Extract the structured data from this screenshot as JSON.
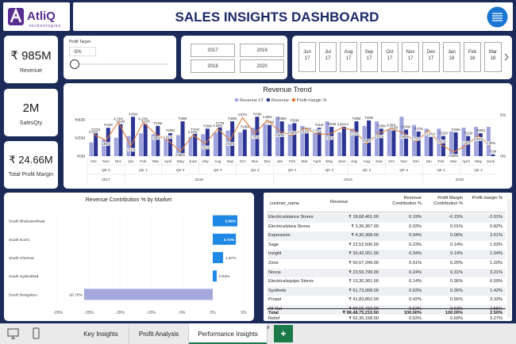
{
  "header": {
    "logo": "AtliQ",
    "logo_sub": "technologies",
    "title": "SALES INSIGHTS DASHBOARD"
  },
  "kpis": [
    {
      "value": "₹ 985M",
      "label": "Revenue"
    },
    {
      "value": "2M",
      "label": "SalesQty"
    },
    {
      "value": "₹ 24.66M",
      "label": "Total Profit Margin"
    }
  ],
  "profit_target": {
    "label": "Profit Target",
    "value": "-5%"
  },
  "year_slicer": [
    "2017",
    "2019",
    "2018",
    "2020"
  ],
  "month_slicer": [
    {
      "month": "Jun",
      "year": "17"
    },
    {
      "month": "Jul",
      "year": "17"
    },
    {
      "month": "Aug",
      "year": "17"
    },
    {
      "month": "Sep",
      "year": "17"
    },
    {
      "month": "Oct",
      "year": "17"
    },
    {
      "month": "Nov",
      "year": "17"
    },
    {
      "month": "Dec",
      "year": "17"
    },
    {
      "month": "Jan",
      "year": "18"
    },
    {
      "month": "Feb",
      "year": "18"
    },
    {
      "month": "Mar",
      "year": "18"
    }
  ],
  "chart_data": [
    {
      "type": "combo",
      "title": "Revenue Trend",
      "categories": [
        "Oct",
        "Nov",
        "Dec",
        "Jan",
        "Feb",
        "Mar",
        "April",
        "May",
        "June",
        "July",
        "Aug",
        "Sep",
        "Oct",
        "Nov",
        "Dec",
        "Jan",
        "Feb",
        "Mar",
        "April",
        "May",
        "June",
        "July",
        "Aug",
        "Sep",
        "Oct",
        "Nov",
        "Dec",
        "Jan",
        "Feb",
        "Mar",
        "April",
        "May",
        "June"
      ],
      "quarters": [
        "Qtr 4",
        "Qtr 1",
        "Qtr 2",
        "Qtr 3",
        "Qtr 4",
        "Qtr 1",
        "Qtr 2",
        "Qtr 3",
        "Qtr 4",
        "Qtr 1",
        "Qtr 2"
      ],
      "years": [
        "2017",
        "2018",
        "2019",
        "2020"
      ],
      "ylim": [
        0,
        45
      ],
      "yticks": [
        {
          "value": 0,
          "label": "₹0M"
        },
        {
          "value": 20,
          "label": "₹20M"
        },
        {
          "value": 40,
          "label": "₹40M"
        }
      ],
      "y2lim": [
        0,
        5
      ],
      "y2ticks": [
        {
          "value": 0,
          "label": "0%"
        },
        {
          "value": 5,
          "label": "5%"
        }
      ],
      "series": [
        {
          "name": "Revenue LY",
          "color": "#9fa3de",
          "type": "bar",
          "values": [
            15,
            18,
            20,
            22,
            25,
            24,
            20,
            23,
            21,
            24,
            26,
            28,
            26,
            31,
            35,
            43,
            35,
            33,
            25,
            38,
            26,
            30,
            33,
            38,
            29,
            43,
            34,
            30,
            30,
            27,
            31,
            32,
            32
          ]
        },
        {
          "name": "Revenue",
          "color": "#2d3594",
          "type": "bar",
          "values": [
            26,
            31,
            35,
            43,
            35,
            33,
            25,
            38,
            26,
            30,
            33,
            38,
            29,
            43,
            34,
            38,
            36,
            27,
            31,
            32,
            32,
            38,
            39,
            30,
            28,
            29,
            27,
            21,
            22,
            26,
            22,
            25,
            2
          ],
          "value_labels": [
            "₹26M",
            "₹31M",
            "₹35M",
            "₹43M",
            "₹35M",
            "₹33M",
            "₹25M",
            "₹38M",
            "₹26M",
            "₹30M",
            "₹33M",
            "₹38M",
            "₹29M",
            "₹43M",
            "₹34M",
            "₹38M",
            "₹36M",
            "₹27M",
            "₹31M",
            "₹32M",
            "₹32M",
            "₹38M",
            "₹39M",
            "₹30M",
            "₹28M",
            "₹29M",
            "₹27M",
            "₹21M",
            "₹22M",
            "₹26M",
            "₹22M",
            "₹25M",
            "₹2M"
          ]
        },
        {
          "name": "Profit margin %",
          "color": "#e07b39",
          "type": "line",
          "axis": "y2",
          "values": [
            2.62,
            1.92,
            4.13,
            1.21,
            4.13,
            2.66,
            1.91,
            0.56,
            2.57,
            1.51,
            3.33,
            1.94,
            4.67,
            2.75,
            4.38,
            3.0,
            2.46,
            3.42,
            2.7,
            2.64,
            3.45,
            3.13,
            1.48,
            2.82,
            3.35,
            2.8,
            1.75,
            3.13,
            1.41,
            0.49,
            1.26,
            2.51,
            1.2
          ],
          "value_labels": [
            "2.62%",
            "1.92%",
            "4.13%",
            "1.21%",
            "4.13%",
            "2.66%",
            "1.91%",
            "0.56%",
            "2.57%",
            "1.51%",
            "3.33%",
            "1.94%",
            "4.67%",
            "2.75%",
            "4.38%",
            "3.00%",
            "2.46%",
            "3.42%",
            "2.70%",
            "2.64%",
            "3.45%",
            "3.13%",
            "1.48%",
            "2.82%",
            "3.35%",
            "2.80%",
            "1.75%",
            "3.13%",
            "1.41%",
            "0.49%",
            "1.26%",
            "2.51%",
            "1.20%"
          ]
        }
      ],
      "legend": "top"
    },
    {
      "type": "hbar",
      "title": "Revenue Contribution % by Market",
      "categories": [
        "South Bhubaneshwar",
        "South Kochi",
        "South Chennai",
        "South Hyderabad",
        "South Bengaluru"
      ],
      "values": [
        3.98,
        3.74,
        1.67,
        0.63,
        -20.78
      ],
      "value_labels": [
        "3.98%",
        "3.74%",
        "1.67%",
        "0.63%",
        "-20.78%"
      ],
      "positive_color": "#1e88e5",
      "negative_color": "#a4a8dc",
      "xlim": [
        -25,
        5
      ],
      "xticks": [
        {
          "value": -25,
          "label": "-25%"
        },
        {
          "value": -20,
          "label": "-20%"
        },
        {
          "value": -15,
          "label": "-15%"
        },
        {
          "value": -10,
          "label": "-10%"
        },
        {
          "value": -5,
          "label": "-5%"
        },
        {
          "value": 0,
          "label": "0%"
        },
        {
          "value": 5,
          "label": "5%"
        }
      ]
    }
  ],
  "table": {
    "columns": [
      "custmer_name",
      "Revenue",
      "Revenue Contribution %",
      "Profit Margin Contribution %",
      "Profit margin %"
    ],
    "rows": [
      [
        "Electricalslance Stores",
        "₹ 18,68,461.00",
        "0.19%",
        "-0.15%",
        "-2.01%"
      ],
      [
        "Electricalsbea Stores",
        "₹ 3,36,367.00",
        "0.03%",
        "0.01%",
        "0.82%"
      ],
      [
        "Expression",
        "₹ 4,30,368.00",
        "0.04%",
        "0.06%",
        "3.51%"
      ],
      [
        "Sage",
        "₹ 22,52,506.00",
        "0.23%",
        "0.14%",
        "1.53%"
      ],
      [
        "Insight",
        "₹ 33,42,051.00",
        "0.34%",
        "0.14%",
        "1.04%"
      ],
      [
        "Zone",
        "₹ 50,67,349.00",
        "0.51%",
        "0.25%",
        "1.20%"
      ],
      [
        "Novus",
        "₹ 23,59,799.00",
        "0.24%",
        "0.31%",
        "3.21%"
      ],
      [
        "Electricalsquipo Stores",
        "₹ 13,30,361.00",
        "0.14%",
        "0.36%",
        "6.59%"
      ],
      [
        "Synthetic",
        "₹ 61,73,068.00",
        "0.63%",
        "0.36%",
        "1.42%"
      ],
      [
        "Propel",
        "₹ 41,83,862.00",
        "0.42%",
        "0.56%",
        "3.33%"
      ],
      [
        "All-Out",
        "₹ 60,66,432.00",
        "0.62%",
        "0.63%",
        "2.55%"
      ],
      [
        "Relief",
        "₹ 52,30,158.00",
        "0.53%",
        "0.69%",
        "3.27%"
      ]
    ],
    "total": [
      "Total",
      "₹ 98,48,75,210.50",
      "100.00%",
      "100.00%",
      "2.50%"
    ]
  },
  "tabs": {
    "items": [
      "Key Insights",
      "Profit Analysis",
      "Performance Insights"
    ],
    "close": "x",
    "add": "+"
  }
}
